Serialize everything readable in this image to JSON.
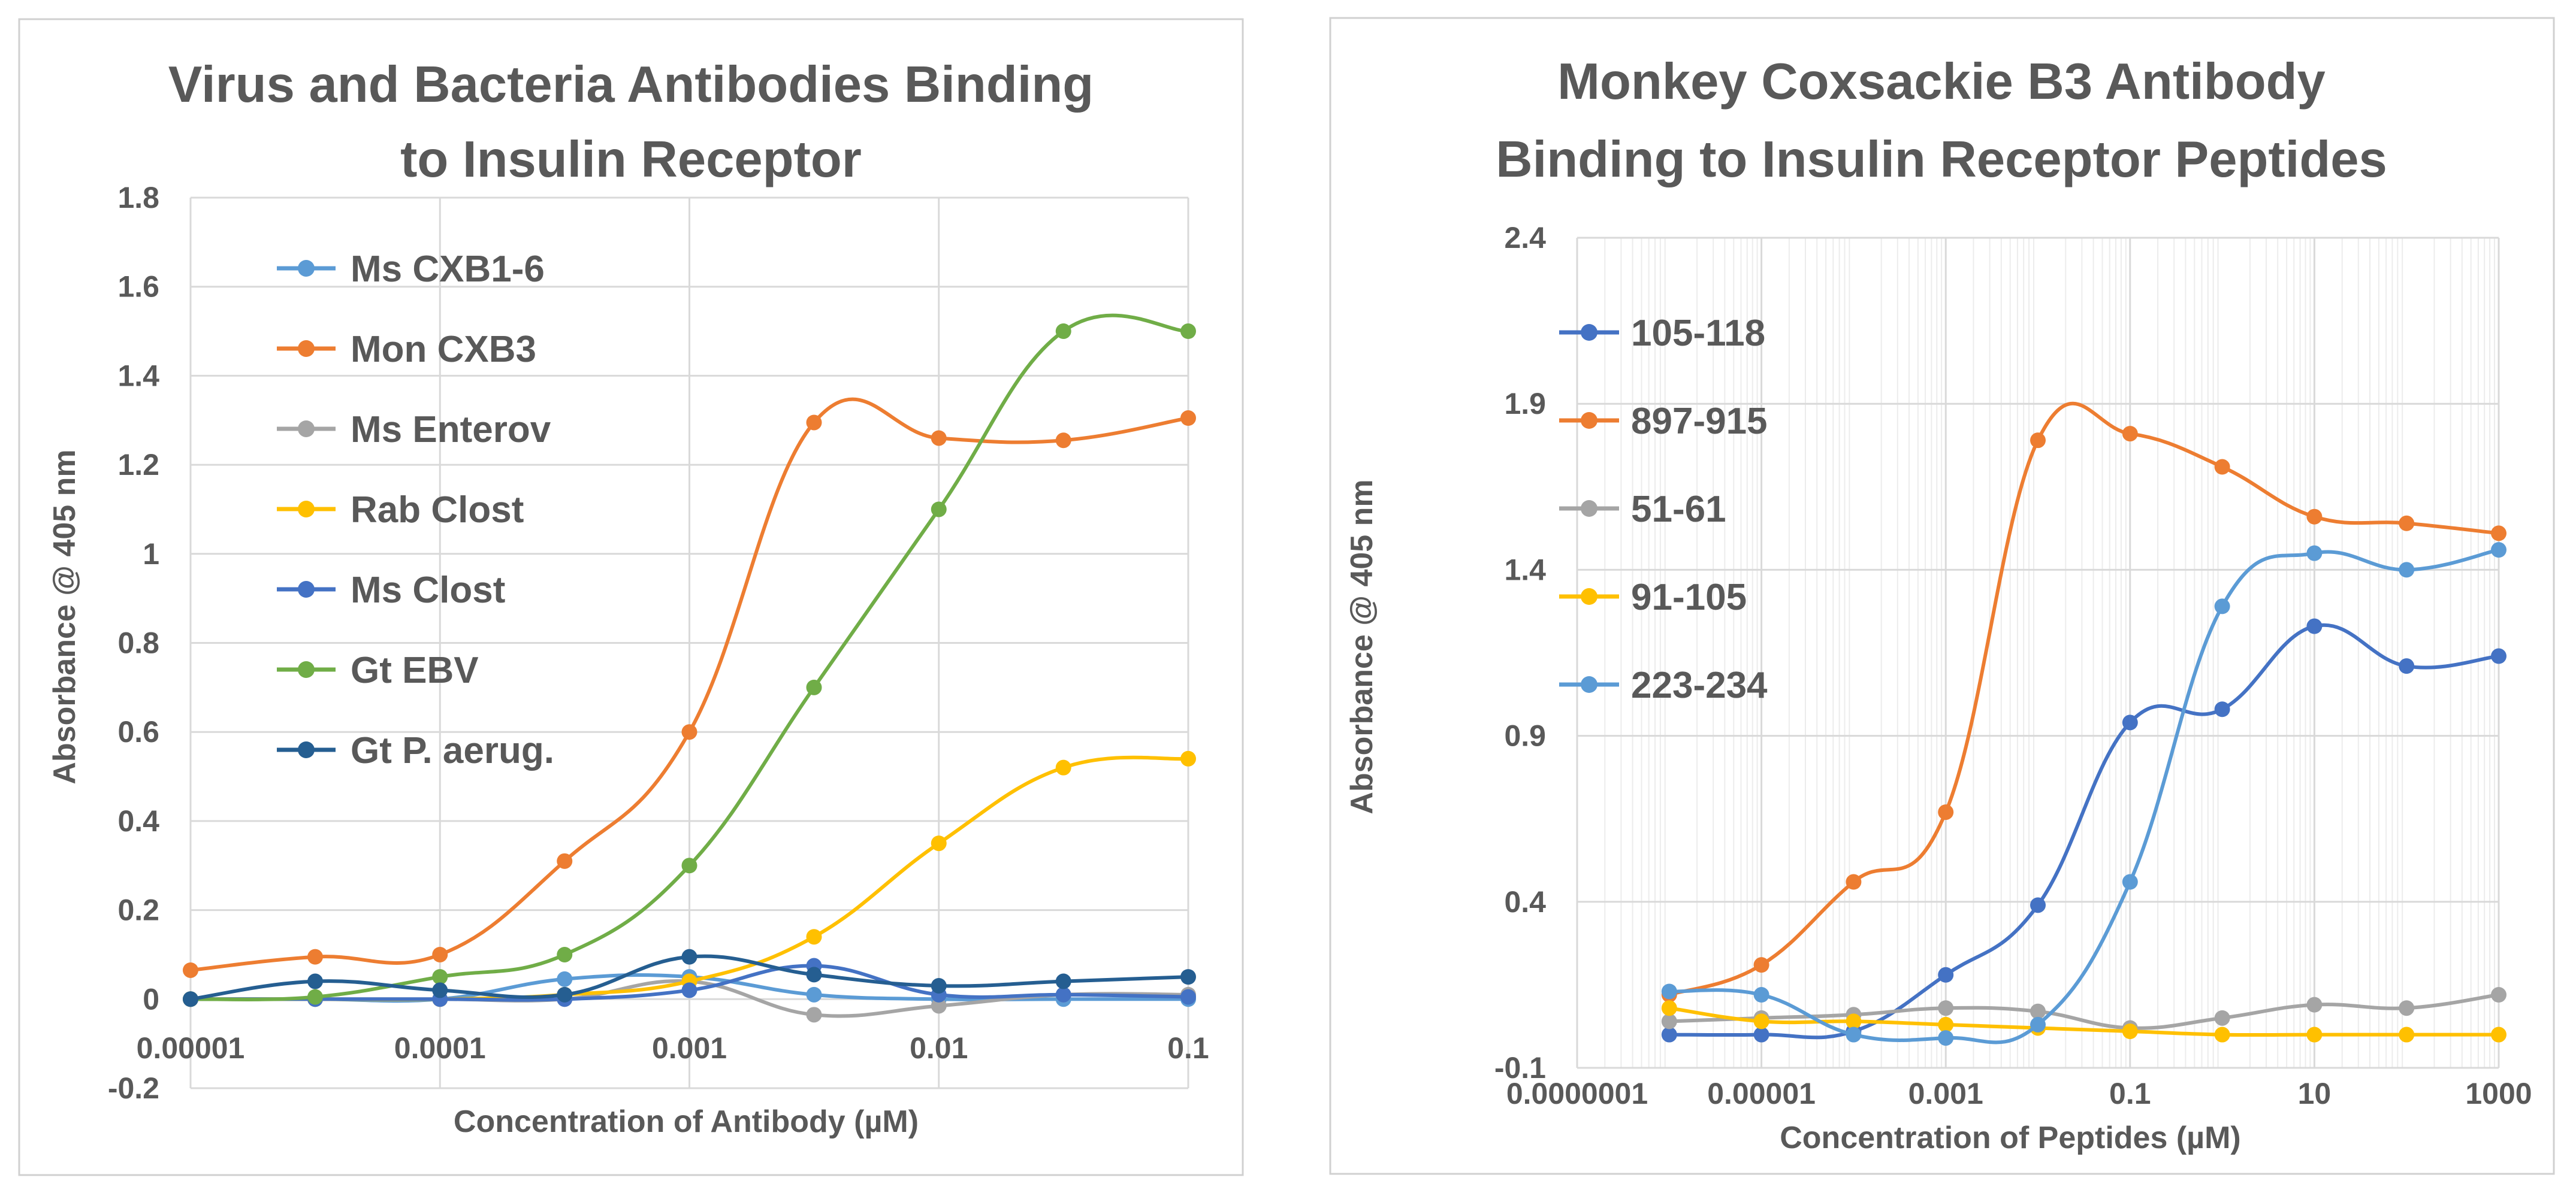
{
  "chart_data": [
    {
      "type": "line",
      "x_scale": "log",
      "title": [
        "Virus and Bacteria Antibodies Binding",
        "to Insulin Receptor"
      ],
      "xlabel": "Concentration of Antibody (µM)",
      "ylabel": "Absorbance @ 405 nm",
      "xlim": [
        1e-05,
        0.1
      ],
      "ylim": [
        -0.2,
        1.8
      ],
      "x_ticks": [
        1e-05,
        0.0001,
        0.001,
        0.01,
        0.1
      ],
      "x_tick_labels": [
        "0.00001",
        "0.0001",
        "0.001",
        "0.01",
        "0.1"
      ],
      "y_ticks": [
        -0.2,
        0,
        0.2,
        0.4,
        0.6,
        0.8,
        1,
        1.2,
        1.4,
        1.6,
        1.8
      ],
      "y_tick_labels": [
        "-0.2",
        "0",
        "0.2",
        "0.4",
        "0.6",
        "0.8",
        "1",
        "1.2",
        "1.4",
        "1.6",
        "1.8"
      ],
      "grid": "major",
      "legend_position": "top-left",
      "x": [
        1e-05,
        3.16e-05,
        0.0001,
        0.000316,
        0.001,
        0.00316,
        0.01,
        0.0316,
        0.1
      ],
      "series": [
        {
          "name": "Ms CXB1-6",
          "color": "#5B9BD5",
          "values": [
            0,
            0,
            0,
            0.045,
            0.05,
            0.01,
            0,
            0,
            0
          ]
        },
        {
          "name": "Mon CXB3",
          "color": "#ED7D31",
          "values": [
            0.065,
            0.095,
            0.1,
            0.31,
            0.6,
            1.295,
            1.26,
            1.255,
            1.305
          ]
        },
        {
          "name": "Ms Enterov",
          "color": "#A5A5A5",
          "values": [
            0,
            0,
            0,
            0,
            0.04,
            -0.035,
            -0.015,
            0.01,
            0.01
          ]
        },
        {
          "name": "Rab Clost",
          "color": "#FFC000",
          "values": [
            0,
            0,
            0,
            0.01,
            0.04,
            0.14,
            0.35,
            0.52,
            0.54
          ]
        },
        {
          "name": "Ms Clost",
          "color": "#4472C4",
          "values": [
            0,
            0,
            0,
            0,
            0.02,
            0.075,
            0.01,
            0.01,
            0.005
          ]
        },
        {
          "name": "Gt EBV",
          "color": "#70AD47",
          "values": [
            0,
            0.005,
            0.05,
            0.1,
            0.3,
            0.7,
            1.1,
            1.5,
            1.5
          ]
        },
        {
          "name": "Gt P. aerug.",
          "color": "#255E91",
          "values": [
            0,
            0.04,
            0.02,
            0.01,
            0.095,
            0.055,
            0.03,
            0.04,
            0.05
          ]
        }
      ]
    },
    {
      "type": "line",
      "x_scale": "log",
      "title": [
        "Monkey Coxsackie B3 Antibody",
        "Binding to Insulin Receptor Peptides"
      ],
      "xlabel": "Concentration of Peptides (µM)",
      "ylabel": "Absorbance @ 405 nm",
      "xlim": [
        1e-07,
        1000
      ],
      "ylim": [
        -0.1,
        2.4
      ],
      "x_ticks": [
        1e-07,
        1e-05,
        0.001,
        0.1,
        10,
        1000
      ],
      "x_tick_labels": [
        "0.0000001",
        "0.00001",
        "0.001",
        "0.1",
        "10",
        "1000"
      ],
      "y_ticks": [
        -0.1,
        0.4,
        0.9,
        1.4,
        1.9,
        2.4
      ],
      "y_tick_labels": [
        "-0.1",
        "0.4",
        "0.9",
        "1.4",
        "1.9",
        "2.4"
      ],
      "grid": "major+minor",
      "legend_position": "top-left",
      "x": [
        1e-06,
        1e-05,
        0.0001,
        0.001,
        0.01,
        0.1,
        1,
        10,
        100,
        1000
      ],
      "series": [
        {
          "name": "105-118",
          "color": "#4472C4",
          "values": [
            0,
            0,
            0.01,
            0.18,
            0.39,
            0.94,
            0.98,
            1.23,
            1.11,
            1.14
          ]
        },
        {
          "name": "897-915",
          "color": "#ED7D31",
          "values": [
            0.12,
            0.21,
            0.46,
            0.67,
            1.79,
            1.81,
            1.71,
            1.56,
            1.54,
            1.51
          ]
        },
        {
          "name": "51-61",
          "color": "#A5A5A5",
          "values": [
            0.04,
            0.05,
            0.06,
            0.08,
            0.07,
            0.02,
            0.05,
            0.09,
            0.08,
            0.12
          ]
        },
        {
          "name": "91-105",
          "color": "#FFC000",
          "values": [
            0.08,
            0.04,
            0.04,
            0.03,
            0.02,
            0.01,
            0,
            0,
            0,
            0
          ]
        },
        {
          "name": "223-234",
          "color": "#5B9BD5",
          "values": [
            0.13,
            0.12,
            0,
            -0.01,
            0.03,
            0.46,
            1.29,
            1.45,
            1.4,
            1.46
          ]
        }
      ]
    }
  ]
}
